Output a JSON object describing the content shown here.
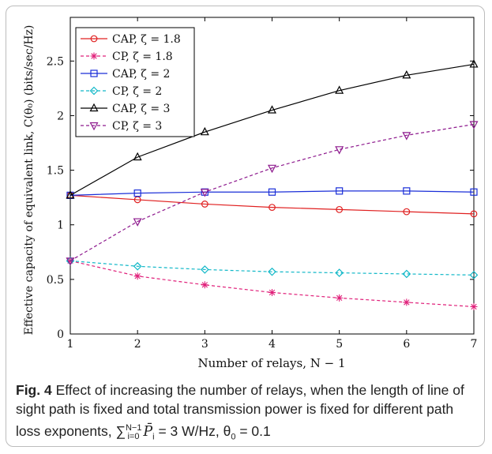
{
  "figure": {
    "label": "Fig. 4",
    "caption_line1": "Effect of increasing the number of relays, when the length of",
    "caption_line2": "line of sight path is fixed and total transmission power is fixed for",
    "caption_line3_text": "different path loss exponents,",
    "caption_sum": "∑",
    "caption_sum_sup": "N−1",
    "caption_sum_sub": "i=0",
    "caption_pbar": "P̄",
    "caption_pbar_sub": "i",
    "caption_tail": " = 3 W/Hz, θ",
    "caption_theta_sub": "0",
    "caption_end": " = 0.1"
  },
  "chart_data": {
    "type": "line",
    "xlabel": "Number of relays, N − 1",
    "ylabel": "Effective capacity of equivalent link, C(θ₀) (bits/sec/Hz)",
    "xlim": [
      1,
      7
    ],
    "ylim": [
      0,
      2.9
    ],
    "xticks": [
      "1",
      "2",
      "3",
      "4",
      "5",
      "6",
      "7"
    ],
    "yticks": [
      "0",
      "0.5",
      "1",
      "1.5",
      "2",
      "2.5"
    ],
    "x": [
      1,
      2,
      3,
      4,
      5,
      6,
      7
    ],
    "legend_position": "top-left",
    "grid": false,
    "series": [
      {
        "name": "CAP, ζ = 1.8",
        "color": "#e02020",
        "dash": false,
        "marker": "circle",
        "values": [
          1.27,
          1.23,
          1.19,
          1.16,
          1.14,
          1.12,
          1.1
        ]
      },
      {
        "name": "CP,   ζ = 1.8",
        "color": "#e0207a",
        "dash": true,
        "marker": "star",
        "values": [
          0.67,
          0.53,
          0.45,
          0.38,
          0.33,
          0.29,
          0.25
        ]
      },
      {
        "name": "CAP, ζ = 2",
        "color": "#1a2ed8",
        "dash": false,
        "marker": "square",
        "values": [
          1.27,
          1.29,
          1.3,
          1.3,
          1.31,
          1.31,
          1.3
        ]
      },
      {
        "name": "CP,   ζ = 2",
        "color": "#12b8c8",
        "dash": true,
        "marker": "diamond",
        "values": [
          0.67,
          0.62,
          0.59,
          0.57,
          0.56,
          0.55,
          0.54
        ]
      },
      {
        "name": "CAP, ζ = 3",
        "color": "#000000",
        "dash": false,
        "marker": "triangle",
        "values": [
          1.27,
          1.62,
          1.85,
          2.05,
          2.23,
          2.37,
          2.47
        ]
      },
      {
        "name": "CP,   ζ = 3",
        "color": "#8e1a8e",
        "dash": true,
        "marker": "tridown",
        "values": [
          0.67,
          1.03,
          1.3,
          1.52,
          1.69,
          1.82,
          1.92
        ]
      }
    ]
  }
}
